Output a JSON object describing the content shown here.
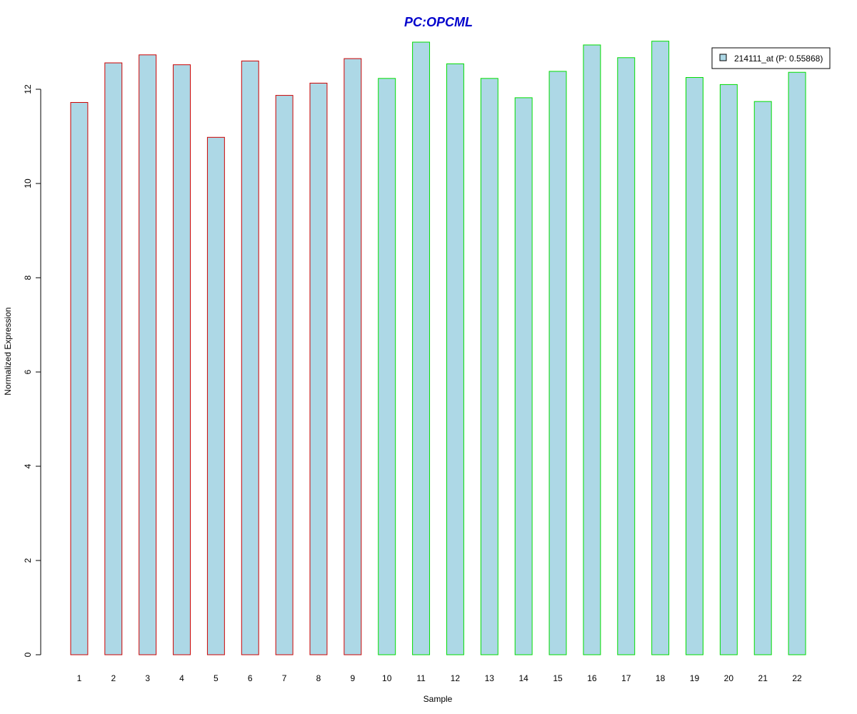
{
  "chart_data": {
    "type": "bar",
    "title": "PC:OPCML",
    "xlabel": "Sample",
    "ylabel": "Normalized Expression",
    "categories": [
      "1",
      "2",
      "3",
      "4",
      "5",
      "6",
      "7",
      "8",
      "9",
      "10",
      "11",
      "12",
      "13",
      "14",
      "15",
      "16",
      "17",
      "18",
      "19",
      "20",
      "21",
      "22"
    ],
    "series": [
      {
        "name": "214111_at (P: 0.55868)",
        "values": [
          11.72,
          12.56,
          12.73,
          12.52,
          10.98,
          12.6,
          11.87,
          12.13,
          12.65,
          12.23,
          13.0,
          12.54,
          12.23,
          11.82,
          12.38,
          12.94,
          12.67,
          13.02,
          12.25,
          12.1,
          11.74,
          12.36
        ]
      }
    ],
    "groups": [
      {
        "count": 9,
        "border_color": "#cc0000"
      },
      {
        "count": 13,
        "border_color": "#00dd00"
      }
    ],
    "fill_color": "#add8e6",
    "title_color": "#0000cc",
    "ylim": [
      0,
      13
    ],
    "yticks": [
      0,
      2,
      4,
      6,
      8,
      10,
      12
    ],
    "legend_position": "top-right",
    "grid": false
  }
}
